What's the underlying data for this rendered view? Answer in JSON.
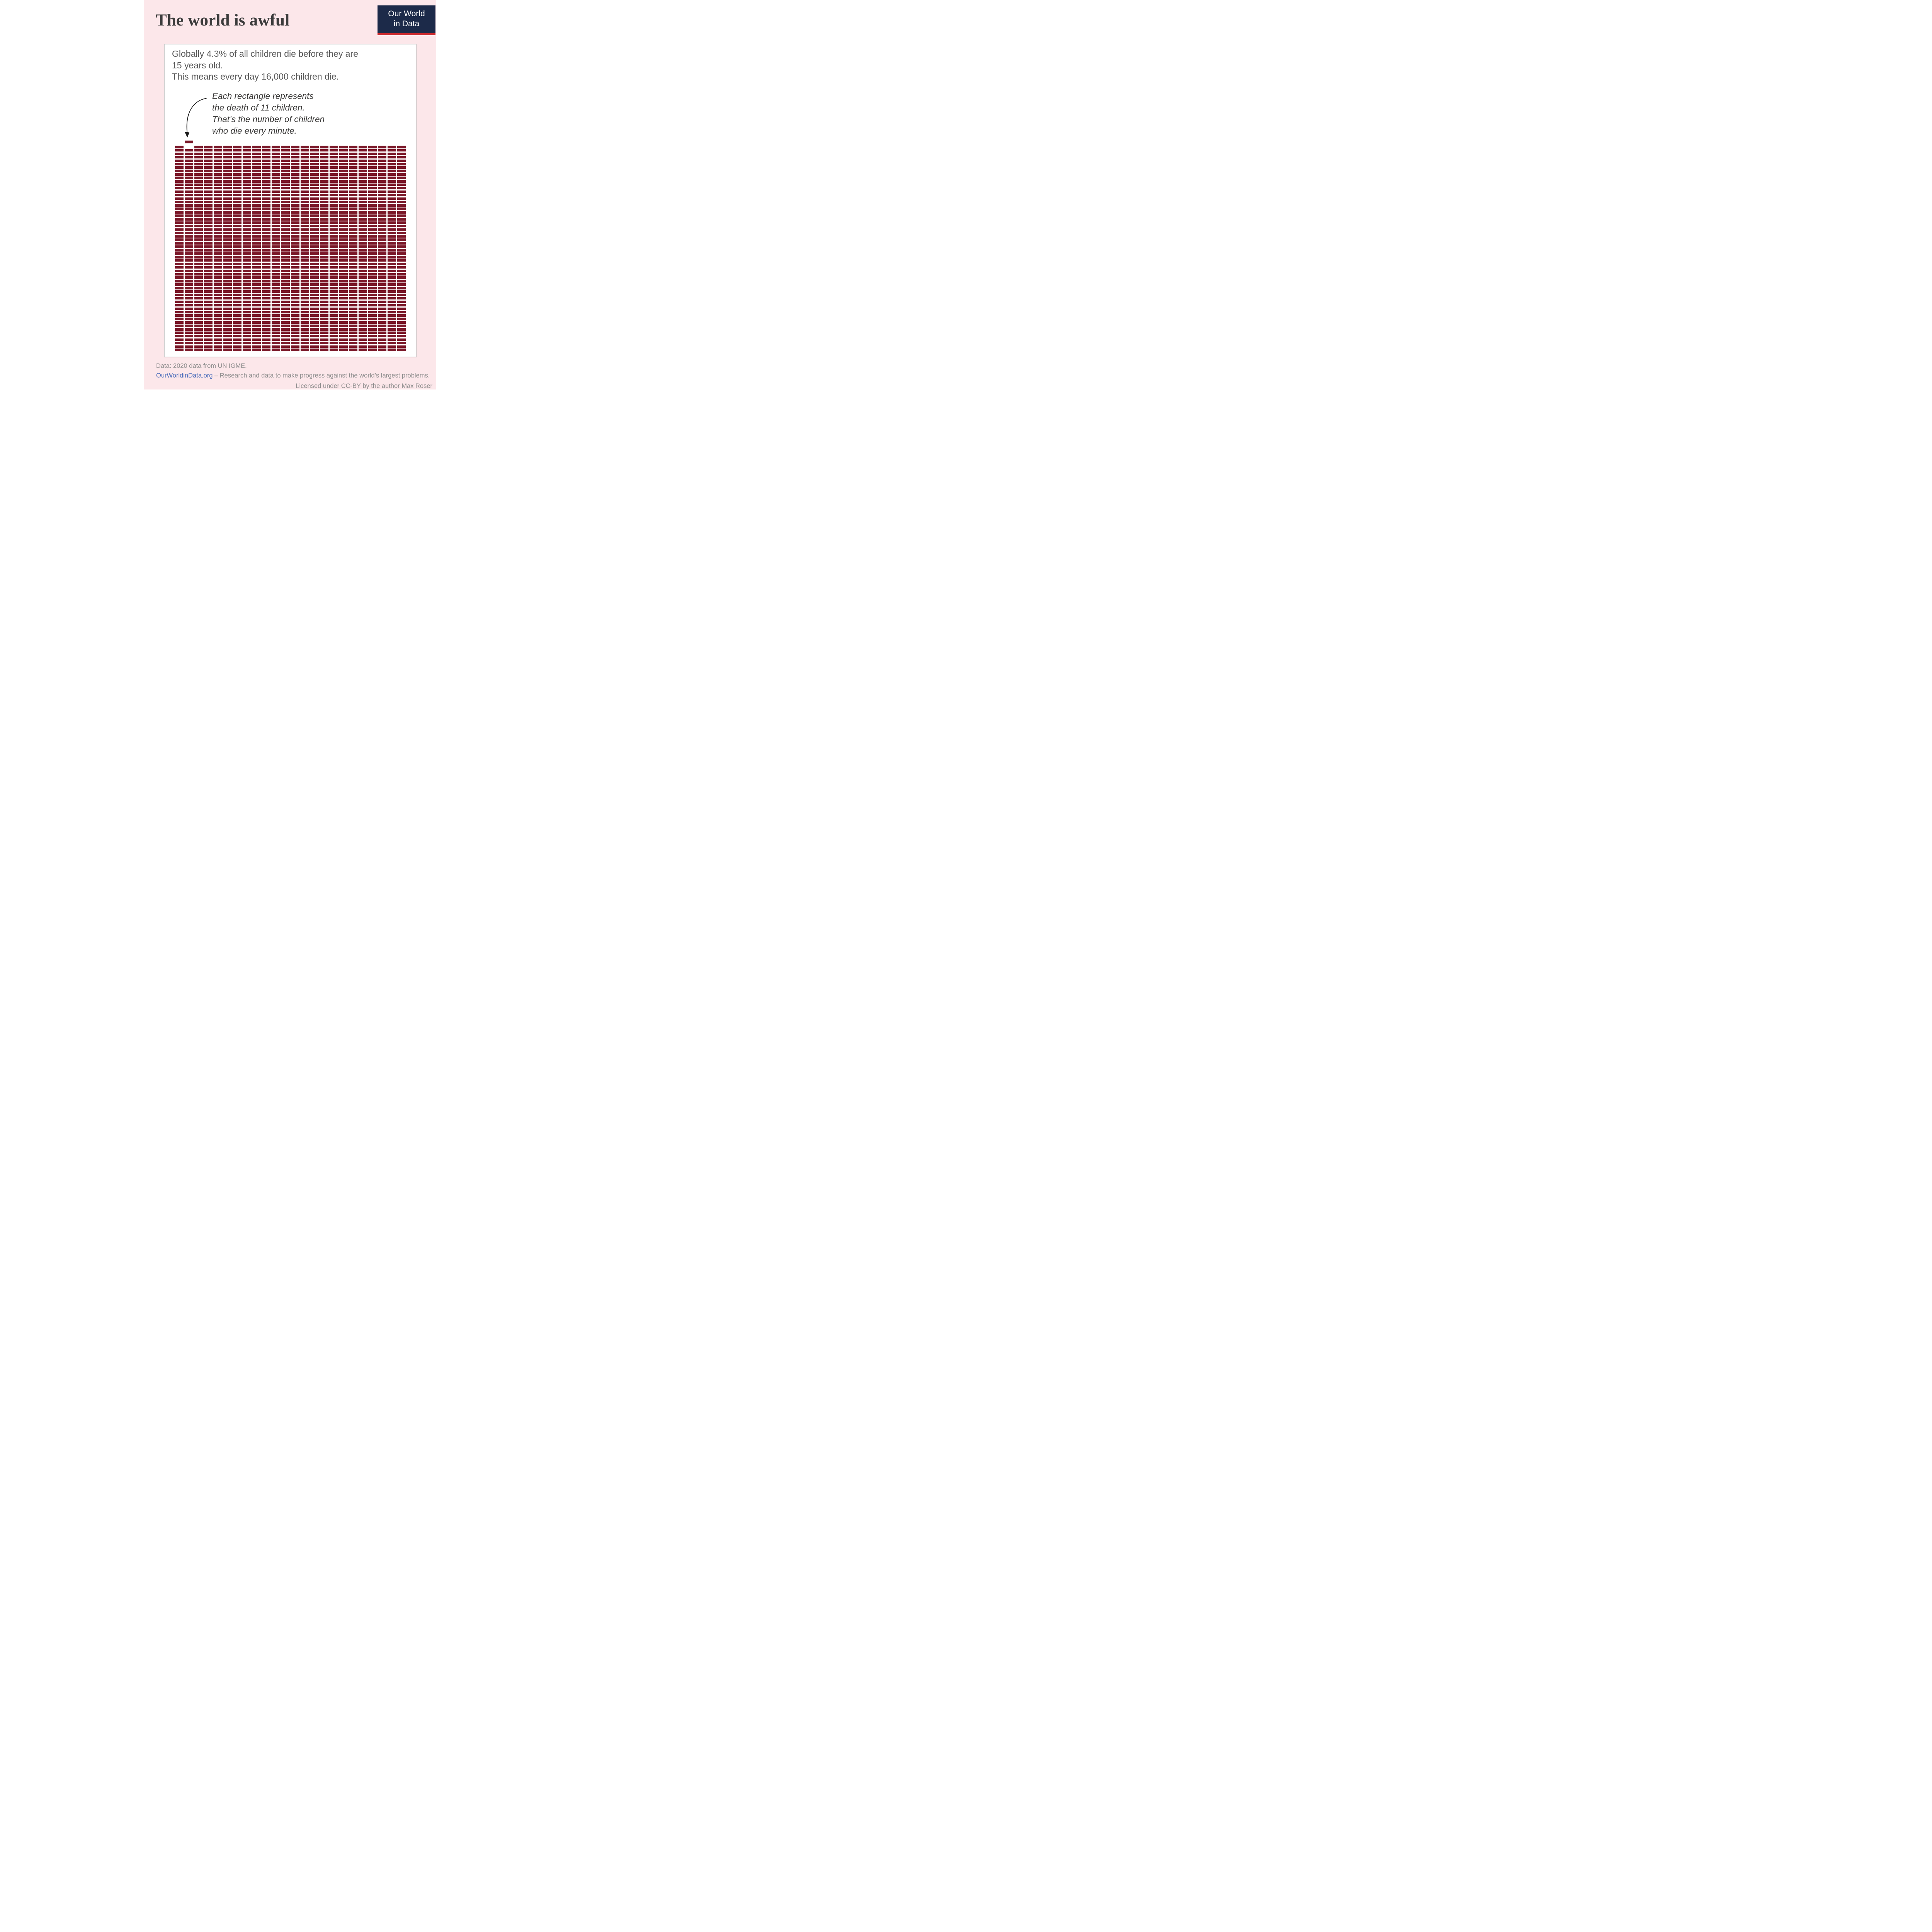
{
  "header": {
    "title": "The world is awful"
  },
  "logo": {
    "line1": "Our World",
    "line2": "in Data"
  },
  "card": {
    "intro_lines": [
      "Globally 4.3% of all children die before they are",
      "15 years old.",
      "This means every day 16,000 children die."
    ],
    "annotation_lines": [
      "Each rectangle represents",
      "the death of 11 children.",
      "That’s the number of children",
      "who die every minute."
    ]
  },
  "chart_data": {
    "type": "waffle",
    "title": "The world is awful",
    "rows": 60,
    "columns": 24,
    "total_rectangles": 1440,
    "children_per_rectangle": 11,
    "deaths_per_day": "16,000",
    "share_of_children_dying_before_15": "4.3%",
    "unit_annotation": "Each rectangle represents the death of 11 children. That’s the number of children who die every minute.",
    "highlighted_rectangle": {
      "row": 1,
      "column": 2,
      "style": "raised above the grid"
    },
    "rect_color": "#7a1728",
    "grid_gap_color": "#ffffff",
    "legend_position": "none",
    "grid": "off"
  },
  "footer": {
    "source": "Data: 2020 data from UN IGME.",
    "link_text": "OurWorldinData.org",
    "tagline": " – Research and data to make progress against the world’s largest problems.",
    "license": "Licensed under CC-BY by the author Max Roser"
  },
  "colors": {
    "background_pink": "#fce7ea",
    "logo_navy": "#1c2a49",
    "logo_red": "#c8282d",
    "waffle_maroon": "#7a1728",
    "link_blue": "#4a6cba",
    "title_text": "#3b3b3b",
    "body_text": "#595959",
    "footer_text": "#8c8c8c"
  }
}
